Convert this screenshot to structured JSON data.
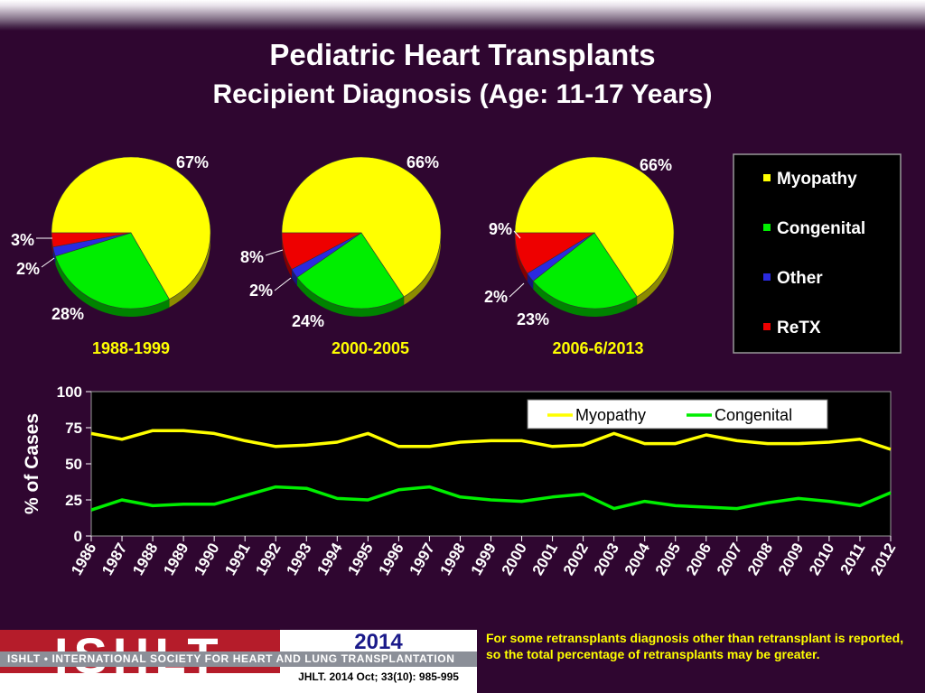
{
  "title_line1": "Pediatric Heart Transplants",
  "title_line2": "Recipient Diagnosis (Age: 11-17 Years)",
  "colors": {
    "Myopathy": "#ffff00",
    "Congenital": "#00ee00",
    "Other": "#2a2ae0",
    "ReTX": "#ee0000"
  },
  "legend_pie": [
    "Myopathy",
    "Congenital",
    "Other",
    "ReTX"
  ],
  "chart_data": [
    {
      "type": "pie",
      "period": "1988-1999",
      "slices": [
        {
          "name": "Myopathy",
          "value": 67,
          "label": "67%"
        },
        {
          "name": "Congenital",
          "value": 28,
          "label": "28%"
        },
        {
          "name": "Other",
          "value": 2,
          "label": "2%"
        },
        {
          "name": "ReTX",
          "value": 3,
          "label": "3%"
        }
      ]
    },
    {
      "type": "pie",
      "period": "2000-2005",
      "slices": [
        {
          "name": "Myopathy",
          "value": 66,
          "label": "66%"
        },
        {
          "name": "Congenital",
          "value": 24,
          "label": "24%"
        },
        {
          "name": "Other",
          "value": 2,
          "label": "2%"
        },
        {
          "name": "ReTX",
          "value": 8,
          "label": "8%"
        }
      ]
    },
    {
      "type": "pie",
      "period": "2006-6/2013",
      "slices": [
        {
          "name": "Myopathy",
          "value": 66,
          "label": "66%"
        },
        {
          "name": "Congenital",
          "value": 23,
          "label": "23%"
        },
        {
          "name": "Other",
          "value": 2,
          "label": "2%"
        },
        {
          "name": "ReTX",
          "value": 9,
          "label": "9%"
        }
      ]
    },
    {
      "type": "line",
      "ylabel": "% of Cases",
      "ylim": [
        0,
        100
      ],
      "yticks": [
        0,
        25,
        50,
        75,
        100
      ],
      "x": [
        "1986",
        "1987",
        "1988",
        "1989",
        "1990",
        "1991",
        "1992",
        "1993",
        "1994",
        "1995",
        "1996",
        "1997",
        "1998",
        "1999",
        "2000",
        "2001",
        "2002",
        "2003",
        "2004",
        "2005",
        "2006",
        "2007",
        "2008",
        "2009",
        "2010",
        "2011",
        "2012"
      ],
      "legend_position": "top-right",
      "series": [
        {
          "name": "Myopathy",
          "values": [
            71,
            67,
            73,
            73,
            71,
            66,
            62,
            63,
            65,
            71,
            62,
            62,
            65,
            66,
            66,
            62,
            63,
            71,
            64,
            64,
            70,
            66,
            64,
            64,
            65,
            67,
            60
          ]
        },
        {
          "name": "Congenital",
          "values": [
            18,
            25,
            21,
            22,
            22,
            28,
            34,
            33,
            26,
            25,
            32,
            34,
            27,
            25,
            24,
            27,
            29,
            19,
            24,
            21,
            20,
            19,
            23,
            26,
            24,
            21,
            30
          ]
        }
      ]
    }
  ],
  "footer": {
    "logo_letters": "ISHLT",
    "logo_band": "ISHLT • INTERNATIONAL SOCIETY FOR HEART AND LUNG TRANSPLANTATION",
    "year": "2014",
    "citation": "JHLT. 2014 Oct; 33(10): 985-995",
    "note": "For some retransplants diagnosis other than retransplant is reported, so the total percentage of retransplants may be greater."
  }
}
